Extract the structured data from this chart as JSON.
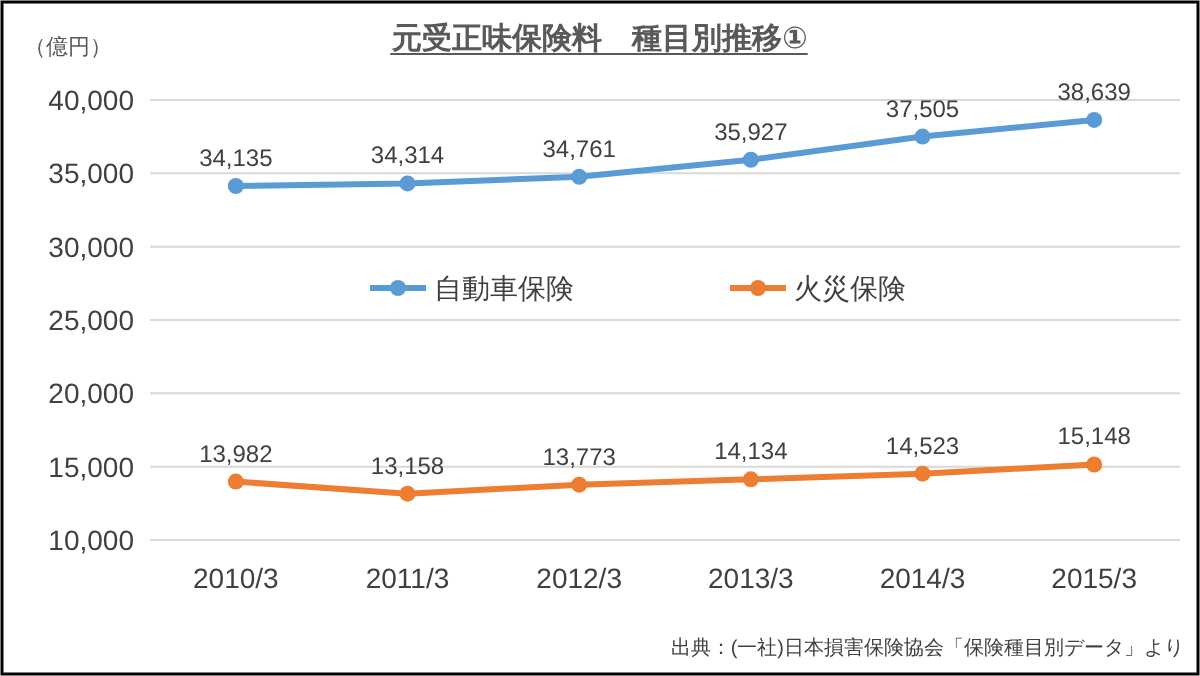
{
  "chart_data": {
    "type": "line",
    "title": "元受正味保険料　種目別推移①",
    "ylabel": "（億円）",
    "categories": [
      "2010/3",
      "2011/3",
      "2012/3",
      "2013/3",
      "2014/3",
      "2015/3"
    ],
    "series": [
      {
        "name": "自動車保険",
        "color": "#5b9bd5",
        "values": [
          34135,
          34314,
          34761,
          35927,
          37505,
          38639
        ],
        "value_labels": [
          "34,135",
          "34,314",
          "34,761",
          "35,927",
          "37,505",
          "38,639"
        ]
      },
      {
        "name": "火災保険",
        "color": "#ed7d31",
        "values": [
          13982,
          13158,
          13773,
          14134,
          14523,
          15148
        ],
        "value_labels": [
          "13,982",
          "13,158",
          "13,773",
          "14,134",
          "14,523",
          "15,148"
        ]
      }
    ],
    "ylim": [
      10000,
      40000
    ],
    "yticks": [
      {
        "value": 10000,
        "label": "10,000"
      },
      {
        "value": 15000,
        "label": "15,000"
      },
      {
        "value": 20000,
        "label": "20,000"
      },
      {
        "value": 25000,
        "label": "25,000"
      },
      {
        "value": 30000,
        "label": "30,000"
      },
      {
        "value": 35000,
        "label": "35,000"
      },
      {
        "value": 40000,
        "label": "40,000"
      }
    ],
    "grid": "y",
    "legend": "top",
    "marker": "circle",
    "line_style": "solid",
    "annotations": [
      "出典：(一社)日本損害保険協会「保険種目別データ」より"
    ]
  }
}
